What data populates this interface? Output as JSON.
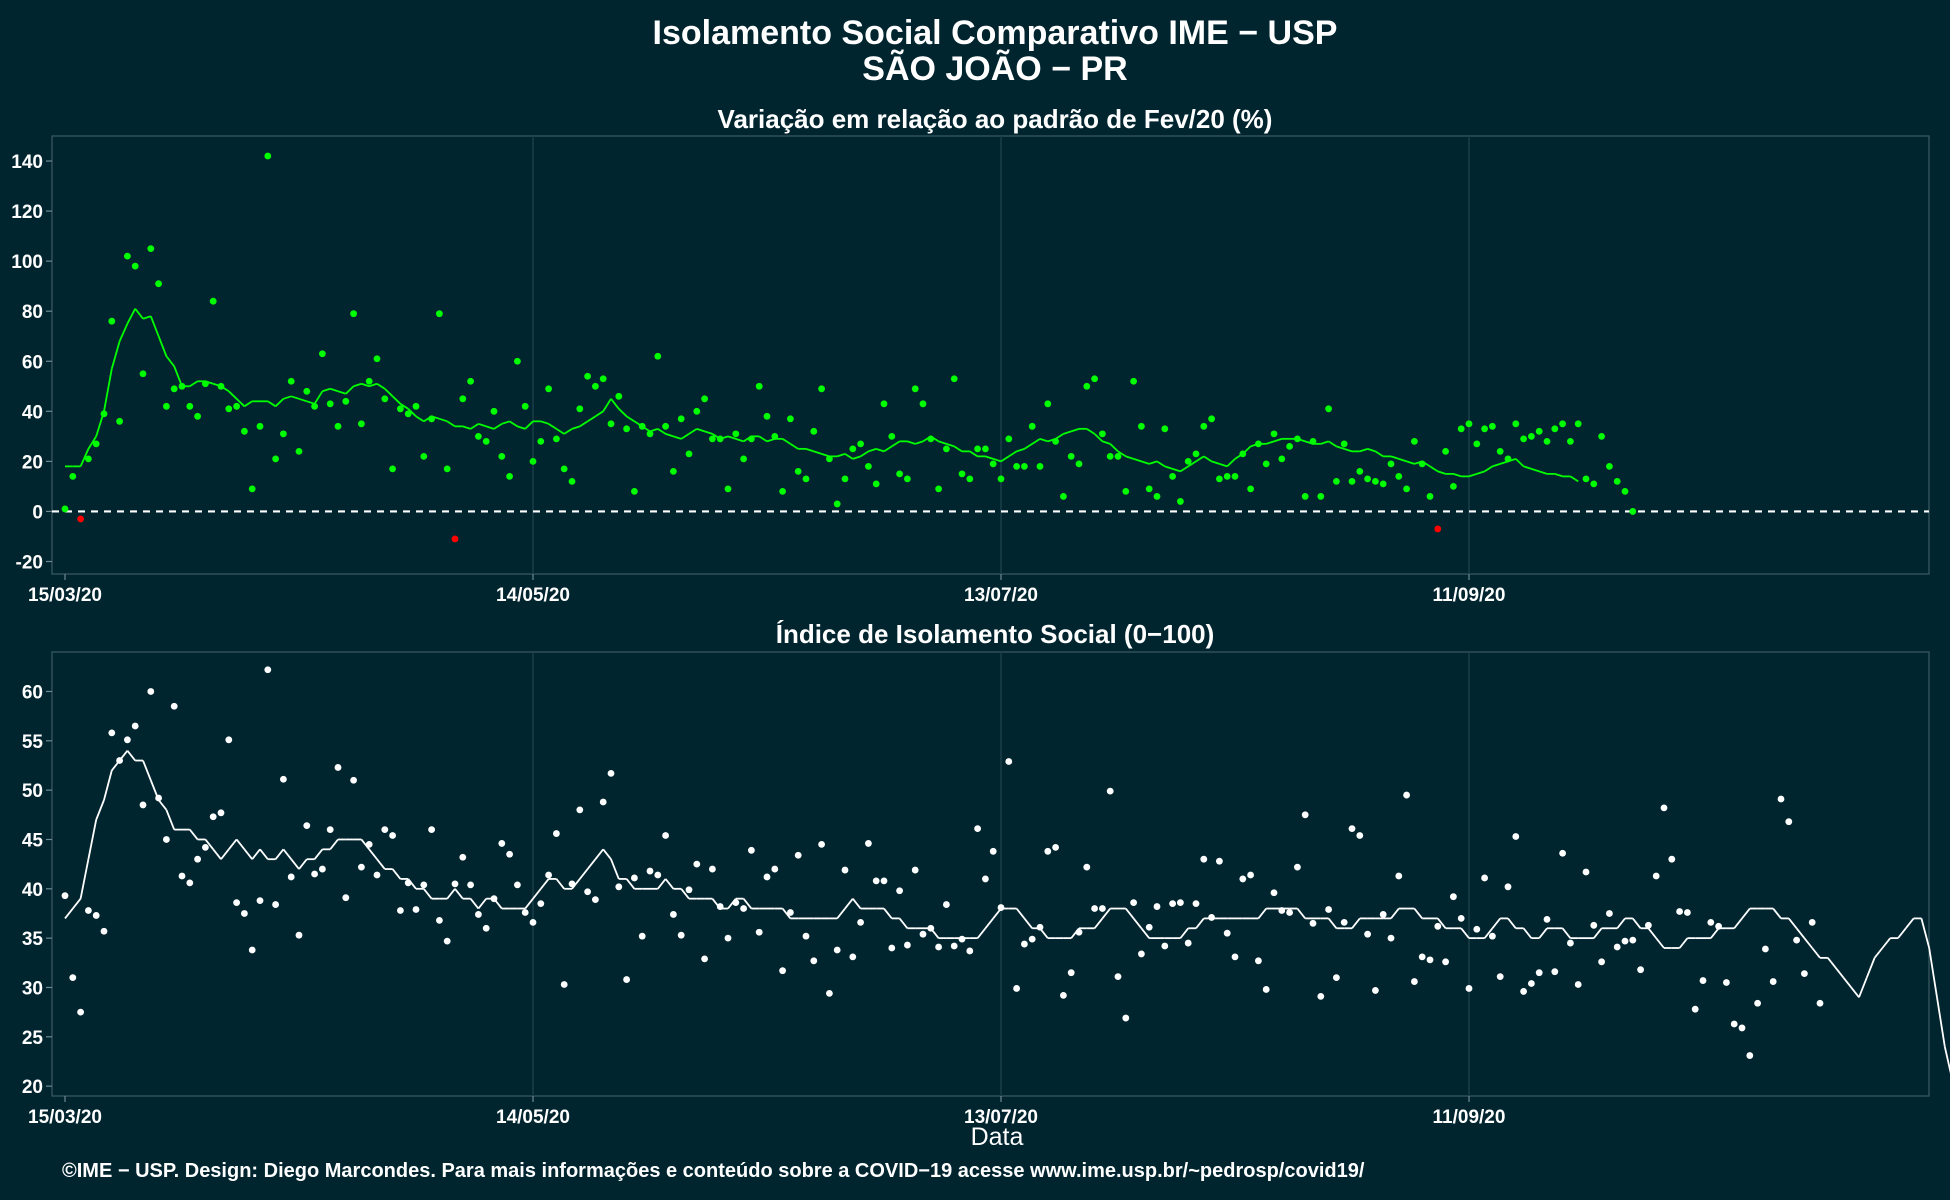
{
  "title": "Isolamento Social Comparativo IME − USP",
  "subtitle": "SÃO JOÃO − PR",
  "footer": "©IME − USP. Design: Diego Marcondes. Para mais informações e conteúdo sobre a COVID−19 acesse www.ime.usp.br/~pedrosp/covid19/",
  "colors": {
    "background": "#00252F",
    "positive": "#00FF00",
    "negative": "#FF0000",
    "index": "#FFFFFF"
  },
  "chart_data": [
    {
      "type": "scatter",
      "title": "Variação em relação ao padrão de Fev/20 (%)",
      "xlabel": "",
      "x_start": "15/03/20",
      "x_ticks": [
        {
          "day": 0,
          "label": "15/03/20"
        },
        {
          "day": 60,
          "label": "14/05/20"
        },
        {
          "day": 120,
          "label": "13/07/20"
        },
        {
          "day": 180,
          "label": "11/09/20"
        }
      ],
      "ylim": [
        -25,
        150
      ],
      "y_ticks": [
        -20,
        0,
        20,
        40,
        60,
        80,
        100,
        120,
        140
      ],
      "reference_line": 0,
      "series": [
        {
          "kind": "daily_points",
          "values": [
            1,
            14,
            -3,
            21,
            27,
            39,
            76,
            36,
            102,
            98,
            55,
            105,
            91,
            42,
            49,
            50,
            42,
            38,
            51,
            84,
            50,
            41,
            42,
            32,
            9,
            34,
            142,
            21,
            31,
            52,
            24,
            48,
            42,
            63,
            43,
            34,
            44,
            79,
            35,
            52,
            61,
            45,
            17,
            41,
            39,
            42,
            22,
            37,
            79,
            17,
            -11,
            45,
            52,
            30,
            28,
            40,
            22,
            14,
            60,
            42,
            20,
            28,
            49,
            29,
            17,
            12,
            41,
            54,
            50,
            53,
            35,
            46,
            33,
            8,
            34,
            31,
            62,
            34,
            16,
            37,
            23,
            40,
            45,
            29,
            29,
            9,
            31,
            21,
            29,
            50,
            38,
            30,
            8,
            37,
            16,
            13,
            32,
            49,
            21,
            3,
            13,
            25,
            27,
            18,
            11,
            43,
            30,
            15,
            13,
            49,
            43,
            29,
            9,
            25,
            53,
            15,
            13,
            25,
            25,
            19,
            13,
            29,
            18,
            18,
            34,
            18,
            43,
            28,
            6,
            22,
            19,
            50,
            53,
            31,
            22,
            22,
            8,
            52,
            34,
            9,
            6,
            33,
            14,
            4,
            20,
            23,
            34,
            37,
            13,
            14,
            14,
            23,
            9,
            27,
            19,
            31,
            21,
            26,
            29,
            6,
            28,
            6,
            41,
            12,
            27,
            12,
            16,
            13,
            12,
            11,
            19,
            14,
            9,
            28,
            19,
            6,
            -7,
            24,
            10,
            33,
            35,
            27,
            33,
            34,
            24,
            21,
            35,
            29,
            30,
            32,
            28,
            33,
            35,
            28,
            35,
            13,
            11,
            30,
            18,
            12,
            8,
            0
          ]
        },
        {
          "kind": "moving_average",
          "values": [
            18,
            18,
            18,
            25,
            30,
            40,
            57,
            68,
            75,
            81,
            77,
            78,
            70,
            62,
            58,
            50,
            50,
            52,
            52,
            51,
            50,
            48,
            45,
            42,
            44,
            44,
            44,
            42,
            45,
            46,
            45,
            44,
            43,
            48,
            49,
            48,
            47,
            50,
            51,
            50,
            51,
            49,
            46,
            43,
            41,
            38,
            36,
            38,
            37,
            36,
            34,
            34,
            33,
            35,
            34,
            33,
            35,
            36,
            34,
            33,
            36,
            36,
            35,
            33,
            31,
            33,
            34,
            36,
            38,
            40,
            45,
            41,
            38,
            36,
            34,
            32,
            33,
            31,
            30,
            29,
            31,
            33,
            32,
            31,
            29,
            30,
            29,
            28,
            30,
            30,
            28,
            29,
            29,
            27,
            25,
            25,
            24,
            23,
            22,
            22,
            23,
            21,
            22,
            24,
            25,
            24,
            26,
            28,
            28,
            27,
            28,
            30,
            28,
            27,
            26,
            24,
            24,
            22,
            22,
            21,
            20,
            22,
            24,
            25,
            27,
            29,
            28,
            29,
            31,
            32,
            33,
            33,
            31,
            28,
            27,
            24,
            22,
            21,
            20,
            19,
            20,
            18,
            17,
            16,
            18,
            20,
            22,
            20,
            19,
            18,
            21,
            23,
            26,
            27,
            27,
            28,
            29,
            29,
            29,
            28,
            27,
            27,
            28,
            26,
            25,
            24,
            24,
            25,
            24,
            22,
            22,
            21,
            20,
            19,
            20,
            18,
            16,
            15,
            15,
            14,
            14,
            15,
            16,
            18,
            19,
            20,
            21,
            18,
            17,
            16,
            15,
            15,
            14,
            14,
            12
          ]
        }
      ]
    },
    {
      "type": "scatter",
      "title": "Índice de Isolamento Social (0−100)",
      "xlabel": "Data",
      "x_start": "15/03/20",
      "x_ticks": [
        {
          "day": 0,
          "label": "15/03/20"
        },
        {
          "day": 60,
          "label": "14/05/20"
        },
        {
          "day": 120,
          "label": "13/07/20"
        },
        {
          "day": 180,
          "label": "11/09/20"
        }
      ],
      "ylim": [
        19,
        64
      ],
      "y_ticks": [
        20,
        25,
        30,
        35,
        40,
        45,
        50,
        55,
        60
      ],
      "series": [
        {
          "kind": "daily_points",
          "values": [
            39.3,
            31.0,
            27.5,
            37.8,
            37.3,
            35.7,
            55.8,
            53.0,
            55.1,
            56.5,
            48.5,
            60.0,
            49.2,
            45.0,
            58.5,
            41.3,
            40.6,
            43.0,
            44.2,
            47.3,
            47.7,
            55.1,
            38.6,
            37.5,
            33.8,
            38.8,
            62.2,
            38.4,
            51.1,
            41.2,
            35.3,
            46.4,
            41.5,
            42.0,
            46.0,
            52.3,
            39.1,
            51.0,
            42.2,
            44.5,
            41.4,
            46.0,
            45.4,
            37.8,
            40.6,
            37.9,
            40.4,
            46.0,
            36.8,
            34.7,
            40.5,
            43.2,
            40.4,
            37.4,
            36.0,
            39.0,
            44.6,
            43.5,
            40.4,
            37.6,
            36.6,
            38.5,
            41.4,
            45.6,
            30.3,
            40.5,
            48.0,
            39.7,
            38.9,
            48.8,
            51.7,
            40.2,
            30.8,
            41.1,
            35.2,
            41.8,
            41.4,
            45.4,
            37.4,
            35.3,
            39.9,
            42.5,
            32.9,
            42.0,
            38.2,
            35.0,
            38.6,
            38.0,
            43.9,
            35.6,
            41.2,
            42.0,
            31.7,
            37.6,
            43.4,
            35.2,
            32.7,
            44.5,
            29.4,
            33.8,
            41.9,
            33.1,
            36.6,
            44.6,
            40.8,
            40.8,
            34.0,
            39.8,
            34.3,
            41.9,
            35.4,
            36.0,
            34.1,
            38.4,
            34.2,
            34.9,
            33.7,
            46.1,
            41.0,
            43.8,
            38.1,
            52.9,
            29.9,
            34.4,
            34.9,
            36.1,
            43.8,
            44.2,
            29.2,
            31.5,
            35.6,
            42.2,
            38.0,
            38.0,
            49.9,
            31.1,
            26.9,
            38.6,
            33.4,
            36.1,
            38.2,
            34.2,
            38.5,
            38.6,
            34.5,
            38.5,
            43.0,
            37.1,
            42.8,
            35.5,
            33.1,
            41.0,
            41.4,
            32.7,
            29.8,
            39.6,
            37.8,
            37.6,
            42.2,
            47.5,
            36.5,
            29.1,
            37.9,
            31.0,
            36.6,
            46.1,
            45.4,
            35.4,
            29.7,
            37.4,
            35.0,
            41.3,
            49.5,
            30.6,
            33.1,
            32.8,
            36.2,
            32.6,
            39.2,
            37.0,
            29.9,
            35.9,
            41.1,
            35.2,
            31.1,
            40.2,
            45.3,
            29.6,
            30.4,
            31.5,
            36.9,
            31.6,
            43.6,
            34.5,
            30.3,
            41.7,
            36.3,
            32.6,
            37.5,
            34.1,
            34.7,
            34.8,
            31.8,
            36.3,
            41.3,
            48.2,
            43.0,
            37.7,
            37.6,
            27.8,
            30.7,
            36.6,
            36.2,
            30.5,
            26.3,
            25.9,
            23.1,
            28.4,
            33.9,
            30.6,
            49.1,
            46.8,
            34.8,
            31.4,
            36.6,
            28.4
          ]
        },
        {
          "kind": "moving_average",
          "values": [
            37,
            38,
            39,
            43,
            47,
            49,
            52,
            53,
            54,
            53,
            53,
            51,
            49,
            48,
            46,
            46,
            46,
            45,
            45,
            44,
            43,
            44,
            45,
            44,
            43,
            44,
            43,
            43,
            44,
            43,
            42,
            43,
            43,
            44,
            44,
            45,
            45,
            45,
            45,
            44,
            43,
            42,
            42,
            41,
            41,
            40,
            40,
            39,
            39,
            39,
            40,
            39,
            39,
            38,
            39,
            39,
            38,
            38,
            38,
            38,
            39,
            40,
            41,
            41,
            40,
            40,
            41,
            42,
            43,
            44,
            43,
            41,
            41,
            40,
            40,
            40,
            40,
            41,
            40,
            40,
            39,
            39,
            39,
            39,
            38,
            38,
            39,
            39,
            38,
            38,
            38,
            38,
            38,
            37,
            37,
            37,
            37,
            37,
            37,
            37,
            38,
            39,
            38,
            38,
            38,
            38,
            37,
            37,
            36,
            36,
            36,
            36,
            35,
            35,
            35,
            35,
            35,
            35,
            36,
            37,
            38,
            38,
            38,
            37,
            36,
            36,
            35,
            35,
            35,
            35,
            36,
            36,
            36,
            37,
            38,
            38,
            38,
            37,
            36,
            35,
            35,
            35,
            35,
            35,
            36,
            36,
            37,
            37,
            37,
            37,
            37,
            37,
            37,
            37,
            38,
            38,
            38,
            38,
            38,
            37,
            37,
            37,
            37,
            36,
            36,
            36,
            37,
            37,
            37,
            37,
            37,
            38,
            38,
            38,
            37,
            37,
            37,
            36,
            36,
            36,
            35,
            35,
            35,
            36,
            37,
            37,
            36,
            36,
            35,
            35,
            36,
            36,
            36,
            35,
            35,
            35,
            35,
            36,
            36,
            36,
            37,
            37,
            36,
            36,
            35,
            34,
            34,
            34,
            35,
            35,
            35,
            35,
            36,
            36,
            36,
            37,
            38,
            38,
            38,
            38,
            37,
            37,
            36,
            35,
            34,
            33,
            33,
            32,
            31,
            30,
            29,
            31,
            33,
            34,
            35,
            35,
            36,
            37,
            37,
            34,
            29,
            24,
            20.5
          ]
        }
      ]
    }
  ]
}
